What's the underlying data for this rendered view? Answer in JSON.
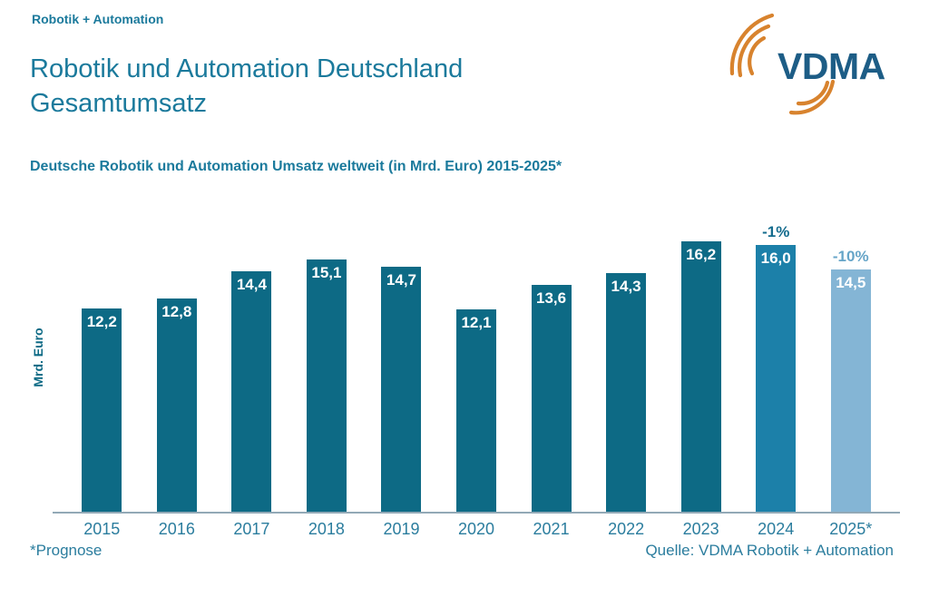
{
  "header": {
    "eyebrow": "Robotik + Automation",
    "title": "Robotik und Automation Deutschland\nGesamtumsatz",
    "subtitle": "Deutsche Robotik und Automation Umsatz weltweit (in Mrd. Euro) 2015-2025*"
  },
  "logo": {
    "text": "VDMA"
  },
  "footer": {
    "footnote": "*Prognose",
    "source": "Quelle: VDMA Robotik + Automation"
  },
  "colors": {
    "teal_text": "#1B7A9C",
    "teal_soft": "#2B7D9E",
    "bar_dark": "#0D6A85",
    "axis_line": "#92A9B6",
    "logo_blue": "#1D5D86",
    "logo_orange": "#D8832E"
  },
  "chart_data": {
    "type": "bar",
    "title": "Deutsche Robotik und Automation Umsatz weltweit (in Mrd. Euro) 2015-2025*",
    "xlabel": "",
    "ylabel": "Mrd. Euro",
    "categories": [
      "2015",
      "2016",
      "2017",
      "2018",
      "2019",
      "2020",
      "2021",
      "2022",
      "2023",
      "2024",
      "2025*"
    ],
    "values": [
      12.2,
      12.8,
      14.4,
      15.1,
      14.7,
      12.1,
      13.6,
      14.3,
      16.2,
      16.0,
      14.5
    ],
    "value_labels": [
      "12,2",
      "12,8",
      "14,4",
      "15,1",
      "14,7",
      "12,1",
      "13,6",
      "14,3",
      "16,2",
      "16,0",
      "14,5"
    ],
    "bar_colors": [
      "#0D6A85",
      "#0D6A85",
      "#0D6A85",
      "#0D6A85",
      "#0D6A85",
      "#0D6A85",
      "#0D6A85",
      "#0D6A85",
      "#0D6A85",
      "#1C80A9",
      "#84B5D5"
    ],
    "annotations": [
      {
        "index": 9,
        "label": "-1%",
        "color": "#156C8E"
      },
      {
        "index": 10,
        "label": "-10%",
        "color": "#66A5C8"
      }
    ],
    "ylim": [
      0,
      17
    ],
    "grid": false,
    "legend": "none",
    "unit": "Mrd. Euro"
  }
}
